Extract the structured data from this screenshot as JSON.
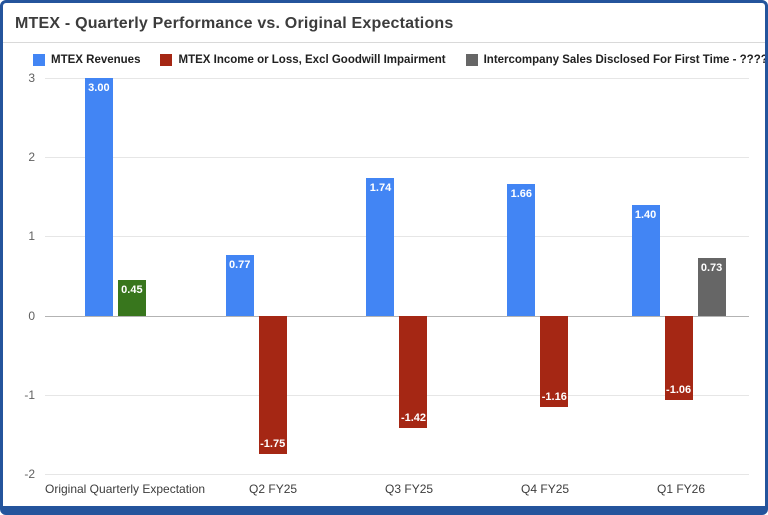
{
  "colors": {
    "frame_border": "#24549c",
    "background": "#ffffff",
    "gridline": "#e6e6e6",
    "zero_baseline": "#b3b3b3",
    "bar_label_text": "#ffffff"
  },
  "chart_data": {
    "type": "bar",
    "title": "MTEX - Quarterly Performance vs. Original Expectations",
    "categories": [
      "Original Quarterly Expectation",
      "Q2 FY25",
      "Q3 FY25",
      "Q4 FY25",
      "Q1 FY26"
    ],
    "series": [
      {
        "name": "MTEX Revenues",
        "color": "#4285f4",
        "values": [
          3.0,
          0.77,
          1.74,
          1.66,
          1.4
        ]
      },
      {
        "name": "MTEX Income or Loss, Excl Goodwill Impairment",
        "color": "#a52714",
        "values": [
          0.45,
          -1.75,
          -1.42,
          -1.16,
          -1.06
        ],
        "point_colors": {
          "0": "#38761d"
        }
      },
      {
        "name": "Intercompany Sales Disclosed For First Time - ?????",
        "color": "#666666",
        "values": [
          null,
          null,
          null,
          null,
          0.73
        ]
      }
    ],
    "xlabel": "",
    "ylabel": "",
    "ylim": [
      -2,
      3
    ],
    "yticks": [
      -2,
      -1,
      0,
      1,
      2,
      3
    ],
    "grid": true,
    "legend_position": "top",
    "value_label_format": "2dp"
  }
}
